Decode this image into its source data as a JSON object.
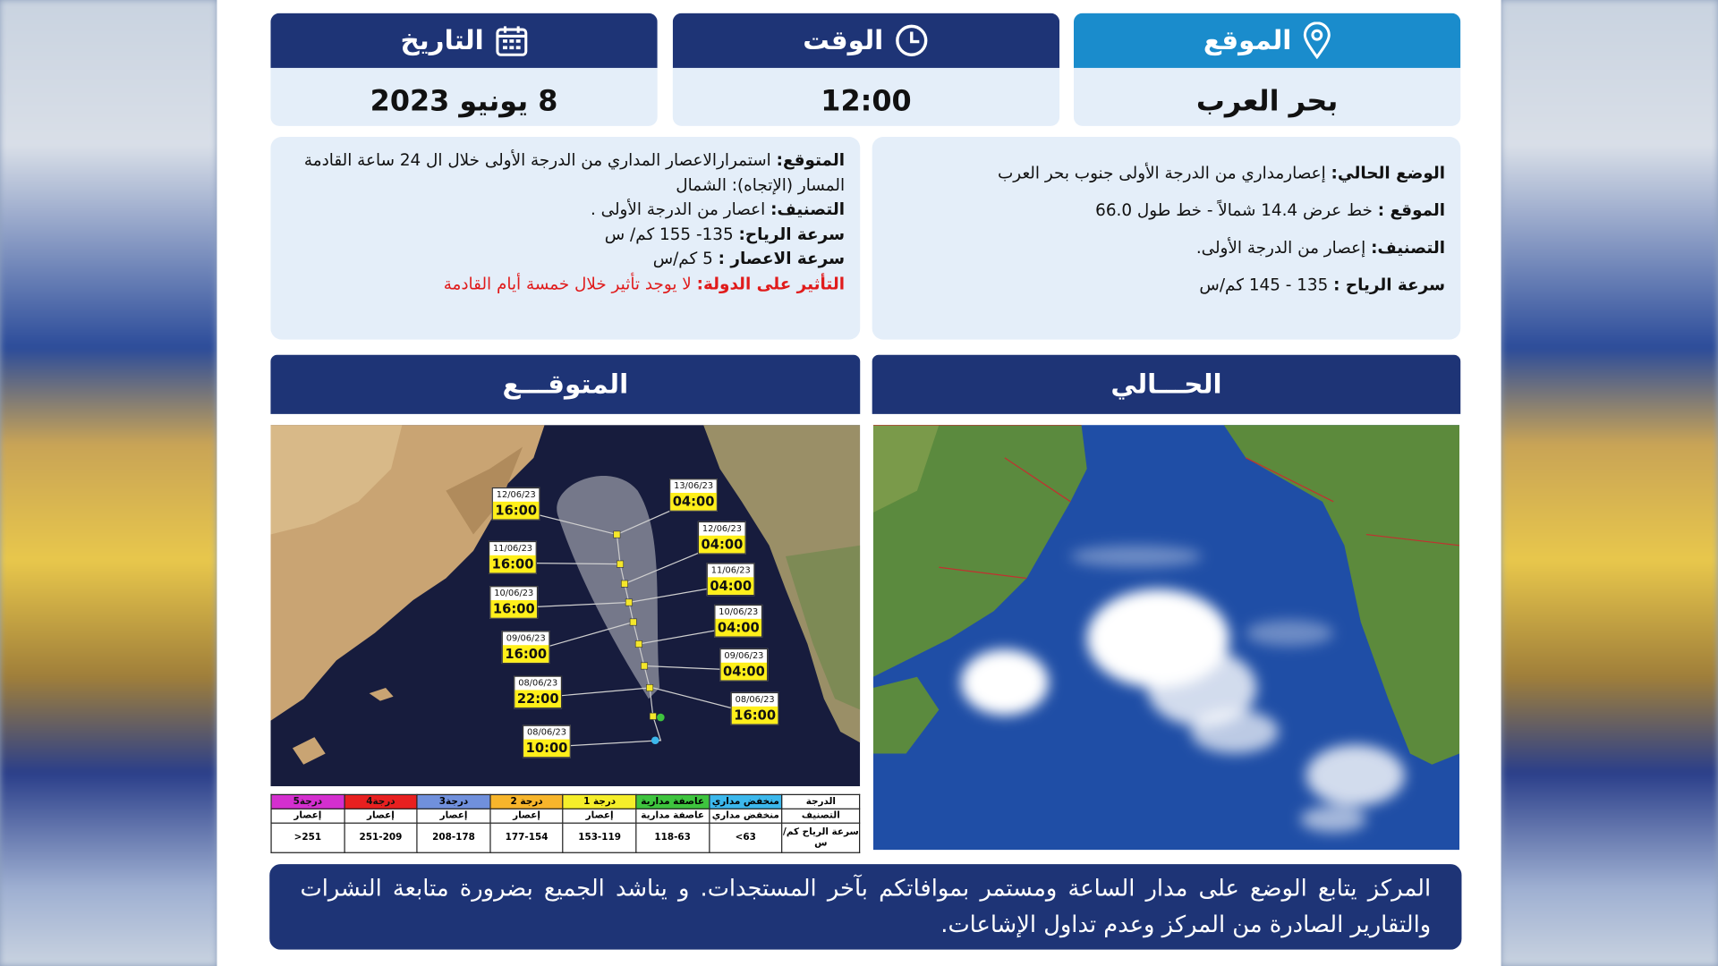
{
  "header": {
    "date": {
      "label": "التاريخ",
      "value": "8 يونيو 2023"
    },
    "time": {
      "label": "الوقت",
      "value": "12:00"
    },
    "location": {
      "label": "الموقع",
      "value": "بحر العرب"
    }
  },
  "current": {
    "title": "الحـــالي",
    "lines": [
      {
        "label": "الوضع الحالي:",
        "text": "إعصارمداري من الدرجة الأولى جنوب بحر العرب"
      },
      {
        "label": "الموقع :",
        "text": "خط عرض 14.4 شمالاً - خط طول 66.0"
      },
      {
        "label": "التصنيف:",
        "text": "إعصار من الدرجة الأولى."
      },
      {
        "label": "سرعة الرياح :",
        "text": "135 - 145 كم/س"
      }
    ]
  },
  "forecast": {
    "title": "المتوقـــع",
    "lines": [
      {
        "label": "المتوقع:",
        "text": "استمرارالاعصار المداري من الدرجة الأولى خلال ال 24 ساعة القادمة"
      },
      {
        "text": "المسار (الإتجاه): الشمال"
      },
      {
        "label": "التصنيف:",
        "text": "اعصار من الدرجة الأولى ."
      },
      {
        "label": "سرعة الرياح:",
        "text": "135- 155 كم/ س"
      },
      {
        "label": "سرعة الاعصار :",
        "text": "5 كم/س"
      },
      {
        "label": "التأثير على الدولة:",
        "text": "لا يوجد تأثير خلال خمسة أيام القادمة",
        "color": "#e01b1b"
      }
    ],
    "track_labels": [
      {
        "date": "12/06/23",
        "time": "16:00"
      },
      {
        "date": "11/06/23",
        "time": "16:00"
      },
      {
        "date": "10/06/23",
        "time": "16:00"
      },
      {
        "date": "09/06/23",
        "time": "16:00"
      },
      {
        "date": "08/06/23",
        "time": "22:00"
      },
      {
        "date": "08/06/23",
        "time": "10:00"
      },
      {
        "date": "13/06/23",
        "time": "04:00"
      },
      {
        "date": "12/06/23",
        "time": "04:00"
      },
      {
        "date": "11/06/23",
        "time": "04:00"
      },
      {
        "date": "10/06/23",
        "time": "04:00"
      },
      {
        "date": "09/06/23",
        "time": "04:00"
      },
      {
        "date": "08/06/23",
        "time": "16:00"
      }
    ],
    "scale_table": {
      "colors": [
        "#ffffff",
        "#3cb8ec",
        "#3ec43e",
        "#f5ee2a",
        "#f7b52b",
        "#7090dc",
        "#e82020",
        "#d42fcf"
      ],
      "rows": [
        [
          "الدرجة",
          "منخفض مداري",
          "عاصفة مدارية",
          "درجة 1",
          "درجة 2",
          "درجة3",
          "درجة4",
          "درجة5"
        ],
        [
          "التصنيف",
          "منخفض مداري",
          "عاصفة مدارية",
          "إعصار",
          "إعصار",
          "إعصار",
          "إعصار",
          "إعصار"
        ],
        [
          "سرعة الرياح كم/س",
          "63>",
          "118-63",
          "153-119",
          "177-154",
          "208-178",
          "251-209",
          "251<"
        ]
      ]
    }
  },
  "footer": "المركز يتابع الوضع على مدار الساعة ومستمر بموافاتكم بآخر المستجدات. و يناشد الجميع بضرورة متابعة النشرات والتقارير الصادرة من المركز وعدم تداول الإشاعات."
}
